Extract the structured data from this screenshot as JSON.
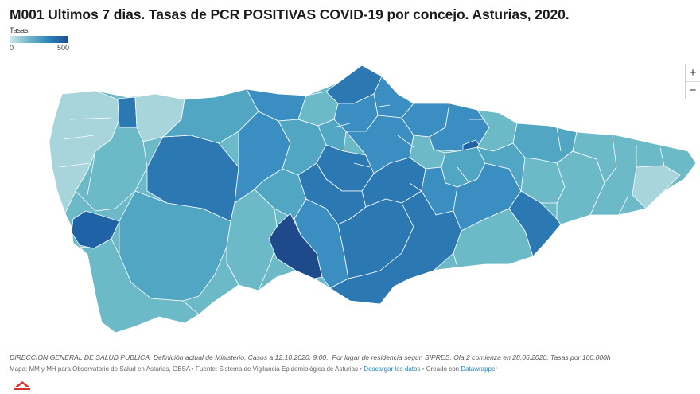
{
  "title": "M001 Ultimos 7 dias. Tasas de PCR POSITIVAS COVID-19 por concejo. Asturias, 2020.",
  "legend": {
    "label": "Tasas",
    "min": "0",
    "max": "500"
  },
  "zoom": {
    "in": "+",
    "out": "−"
  },
  "notes": "DIRECCION GENERAL DE SALUD PUBLICA. Definición actual de Ministerio. Casos a 12.10.2020. 9:00.. Por lugar de residencia segun SIPRES. Ola 2 comienza en 28.06.2020. Tasas por 100.000h",
  "credits": {
    "map": "Mapa: MM y MH para Observatorio de Salud en Asturias, OBSA",
    "source": "Fuente: Sistema de Vigilancia Epidemiológica de Asturias",
    "download": "Descargar los datos",
    "created": "Creado con",
    "tool": "Datawrapper",
    "sep": "•"
  },
  "colors": {
    "very_light": "#a8d5dc",
    "light": "#6cbac8",
    "medium_light": "#51a6c3",
    "medium": "#3b8ec1",
    "medium_dark": "#2b78b3",
    "dark": "#1f63a6",
    "darkest": "#1e4a8c"
  }
}
